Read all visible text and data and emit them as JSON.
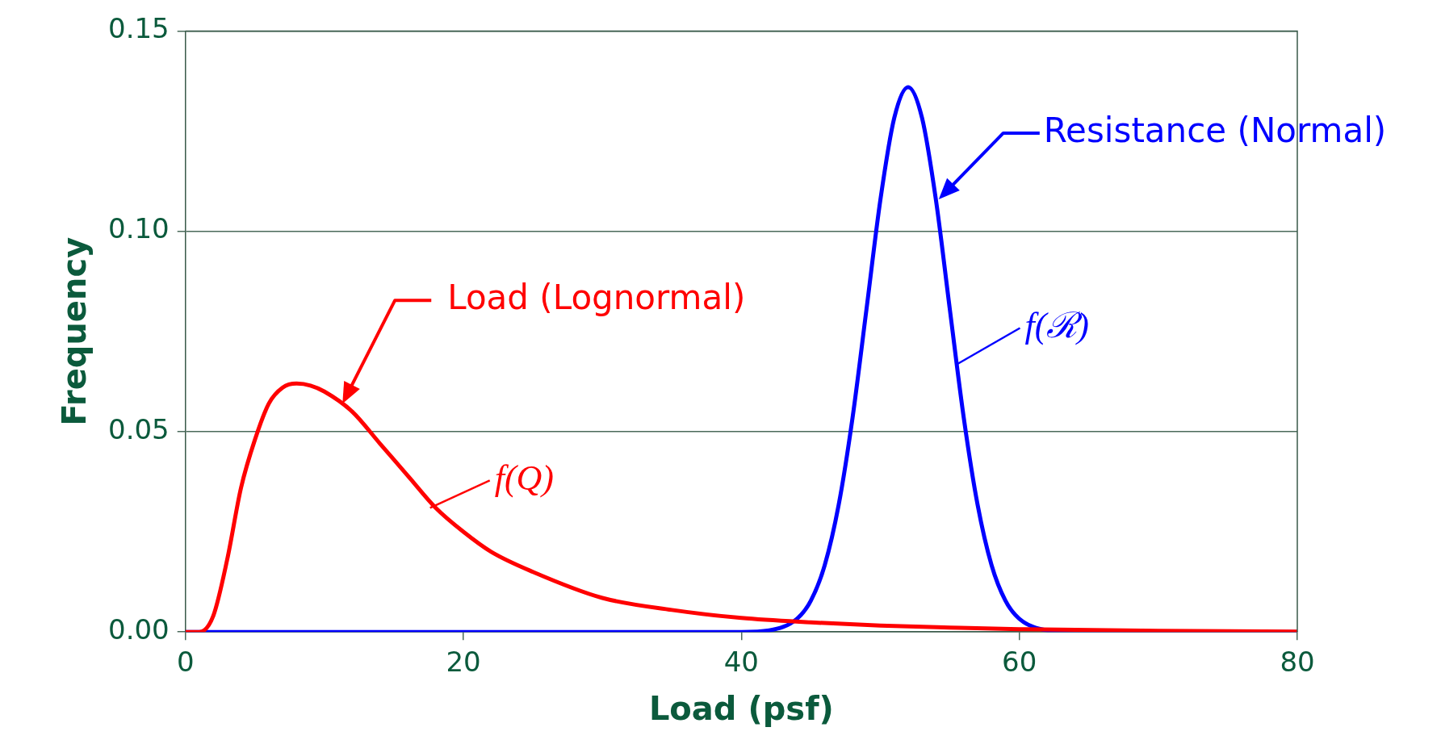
{
  "chart_data": {
    "type": "line",
    "xlabel": "Load (psf)",
    "ylabel": "Frequency",
    "xlim": [
      0,
      80
    ],
    "xticks": [
      0,
      20,
      40,
      60,
      80
    ],
    "ylim": [
      0,
      0.15
    ],
    "yticks": [
      {
        "value": 0,
        "label": "0.00"
      },
      {
        "value": 0.05,
        "label": "0.05"
      },
      {
        "value": 0.1,
        "label": "0.10"
      },
      {
        "value": 0.15,
        "label": "0.15"
      }
    ],
    "grid": "y",
    "legend": false,
    "marker": "none",
    "line_style": "solid",
    "series": [
      {
        "name": "Load (Lognormal)",
        "color": "#ff0000",
        "x": [
          0,
          1,
          2,
          3,
          4,
          5,
          6,
          7,
          8,
          9,
          10,
          12,
          14,
          16,
          18,
          20,
          22,
          25,
          30,
          35,
          40,
          45,
          50,
          55,
          60,
          70,
          80
        ],
        "values": [
          0,
          0,
          0.004,
          0.018,
          0.036,
          0.048,
          0.057,
          0.061,
          0.062,
          0.0615,
          0.06,
          0.055,
          0.047,
          0.039,
          0.031,
          0.025,
          0.02,
          0.015,
          0.0085,
          0.0055,
          0.0035,
          0.0024,
          0.0016,
          0.0011,
          0.0007,
          0.0003,
          0.0001
        ]
      },
      {
        "name": "Resistance (Normal)",
        "color": "#0000ff",
        "x": [
          0,
          40,
          42,
          44,
          45,
          46,
          47,
          48,
          49,
          50,
          51,
          52,
          53,
          54,
          55,
          56,
          57,
          58,
          59,
          60,
          62,
          64,
          80
        ],
        "values": [
          0,
          0,
          0.0004,
          0.0033,
          0.0078,
          0.0167,
          0.0317,
          0.0535,
          0.0805,
          0.1078,
          0.1283,
          0.136,
          0.1283,
          0.1078,
          0.0805,
          0.0535,
          0.0317,
          0.0167,
          0.0078,
          0.0033,
          0.0004,
          0,
          0
        ]
      }
    ],
    "annotations": [
      {
        "text": "f(Q)",
        "x": 17.6,
        "y": 0.031
      },
      {
        "text": "f(ℛ)",
        "x": 55.4,
        "y": 0.0666
      }
    ]
  }
}
